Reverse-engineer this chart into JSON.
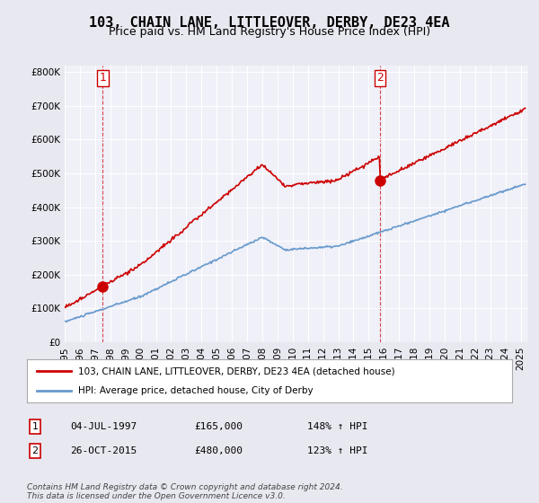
{
  "title": "103, CHAIN LANE, LITTLEOVER, DERBY, DE23 4EA",
  "subtitle": "Price paid vs. HM Land Registry's House Price Index (HPI)",
  "sale1_price": 165000,
  "sale2_price": 480000,
  "legend_line1": "103, CHAIN LANE, LITTLEOVER, DERBY, DE23 4EA (detached house)",
  "legend_line2": "HPI: Average price, detached house, City of Derby",
  "table_row1": [
    "1",
    "04-JUL-1997",
    "£165,000",
    "148% ↑ HPI"
  ],
  "table_row2": [
    "2",
    "26-OCT-2015",
    "£480,000",
    "123% ↑ HPI"
  ],
  "footnote": "Contains HM Land Registry data © Crown copyright and database right 2024.\nThis data is licensed under the Open Government Licence v3.0.",
  "red_line_color": "#cc0000",
  "blue_line_color": "#6699cc",
  "background_color": "#e8e8f0",
  "plot_bg_color": "#f0f0f8",
  "ylim": [
    0,
    820000
  ],
  "yticks": [
    0,
    100000,
    200000,
    300000,
    400000,
    500000,
    600000,
    700000,
    800000
  ]
}
